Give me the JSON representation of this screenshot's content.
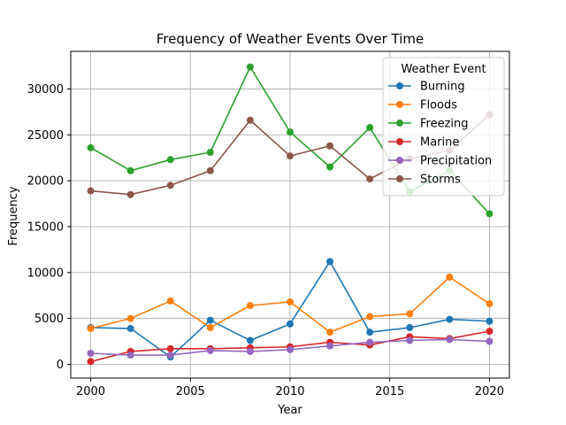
{
  "chart_data": {
    "type": "line",
    "title": "Frequency of Weather Events Over Time",
    "xlabel": "Year",
    "ylabel": "Frequency",
    "x": [
      2000,
      2002,
      2004,
      2006,
      2008,
      2010,
      2012,
      2014,
      2016,
      2018,
      2020
    ],
    "xlim": [
      1999,
      2021
    ],
    "ylim": [
      -1500,
      34100
    ],
    "xticks": [
      2000,
      2005,
      2010,
      2015,
      2020
    ],
    "yticks": [
      0,
      5000,
      10000,
      15000,
      20000,
      25000,
      30000
    ],
    "grid": true,
    "legend": {
      "title": "Weather Event",
      "placement": "top-right"
    },
    "series": [
      {
        "name": "Burning",
        "color": "#1f77b4",
        "values": [
          4000,
          3900,
          800,
          4800,
          2600,
          4400,
          11200,
          3500,
          4000,
          4900,
          4700
        ]
      },
      {
        "name": "Floods",
        "color": "#ff7f0e",
        "values": [
          3900,
          5000,
          6900,
          4000,
          6400,
          6800,
          3500,
          5200,
          5500,
          9500,
          6600
        ]
      },
      {
        "name": "Freezing",
        "color": "#2ca02c",
        "values": [
          23600,
          21100,
          22300,
          23100,
          32400,
          25300,
          21500,
          25800,
          18800,
          21100,
          16400
        ]
      },
      {
        "name": "Marine",
        "color": "#d62728",
        "values": [
          300,
          1400,
          1700,
          1700,
          1800,
          1900,
          2400,
          2100,
          3000,
          2800,
          3600
        ]
      },
      {
        "name": "Precipitation",
        "color": "#9467bd",
        "values": [
          1200,
          1000,
          1000,
          1500,
          1400,
          1600,
          2000,
          2400,
          2600,
          2700,
          2500
        ]
      },
      {
        "name": "Storms",
        "color": "#8c564b",
        "values": [
          18900,
          18500,
          19500,
          21100,
          26600,
          22700,
          23800,
          20200,
          22400,
          23300,
          27200
        ]
      }
    ]
  }
}
